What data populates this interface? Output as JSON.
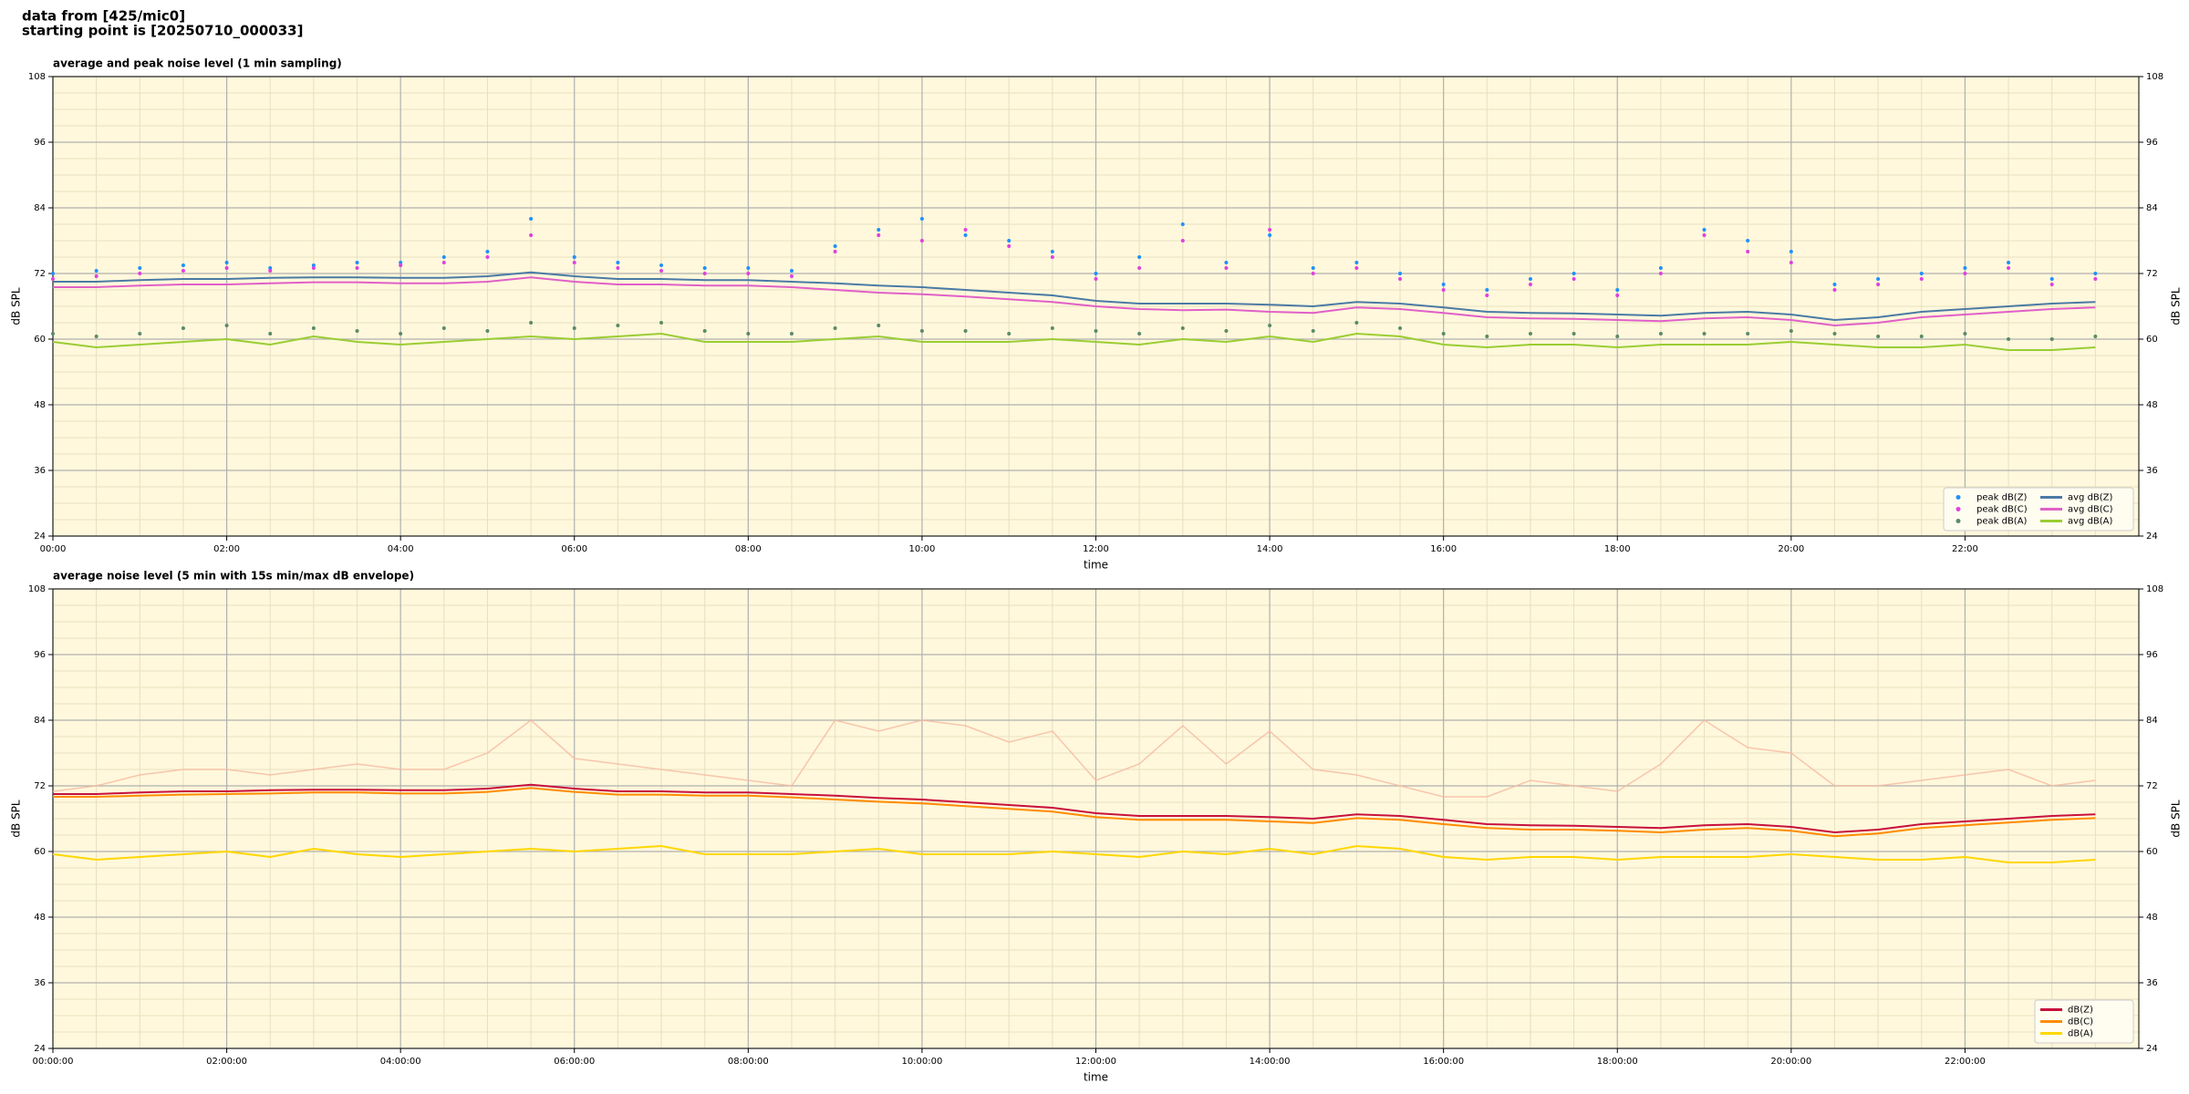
{
  "header": {
    "line1": "data from [425/mic0]",
    "line2": "starting point is [20250710_000033]"
  },
  "chart_data": [
    {
      "type": "line",
      "title": "average and peak noise level (1 min sampling)",
      "xlabel": "time",
      "ylabel": "dB SPL",
      "y2label": "dB SPL",
      "grid": true,
      "minor_grid": true,
      "legend": "lower right",
      "legend_columns": 2,
      "background": "#fff8dc",
      "xlim": [
        "00:00",
        "24:00"
      ],
      "xticks": [
        "00:00",
        "02:00",
        "04:00",
        "06:00",
        "08:00",
        "10:00",
        "12:00",
        "14:00",
        "16:00",
        "18:00",
        "20:00",
        "22:00"
      ],
      "ylim": [
        24,
        108
      ],
      "yticks": [
        24,
        36,
        48,
        60,
        72,
        84,
        96,
        108
      ],
      "y2lim": [
        24,
        108
      ],
      "y2ticks": [
        24,
        36,
        48,
        60,
        72,
        84,
        96,
        108
      ],
      "x": [
        "00:00",
        "00:30",
        "01:00",
        "01:30",
        "02:00",
        "02:30",
        "03:00",
        "03:30",
        "04:00",
        "04:30",
        "05:00",
        "05:30",
        "06:00",
        "06:30",
        "07:00",
        "07:30",
        "08:00",
        "08:30",
        "09:00",
        "09:30",
        "10:00",
        "10:30",
        "11:00",
        "11:30",
        "12:00",
        "12:30",
        "13:00",
        "13:30",
        "14:00",
        "14:30",
        "15:00",
        "15:30",
        "16:00",
        "16:30",
        "17:00",
        "17:30",
        "18:00",
        "18:30",
        "19:00",
        "19:30",
        "20:00",
        "20:30",
        "21:00",
        "21:30",
        "22:00",
        "22:30",
        "23:00",
        "23:30"
      ],
      "series": [
        {
          "name": "peak dB(Z)",
          "kind": "scatter",
          "color": "#1e90ff",
          "values": [
            72,
            72.5,
            73,
            73.5,
            74,
            73,
            73.5,
            74,
            74,
            75,
            76,
            82,
            75,
            74,
            73.5,
            73,
            73,
            72.5,
            77,
            80,
            82,
            79,
            78,
            76,
            72,
            75,
            81,
            74,
            79,
            73,
            74,
            72,
            70,
            69,
            71,
            72,
            69,
            73,
            80,
            78,
            76,
            70,
            71,
            72,
            73,
            74,
            71,
            72
          ]
        },
        {
          "name": "peak dB(C)",
          "kind": "scatter",
          "color": "#e040e0",
          "values": [
            71,
            71.5,
            72,
            72.5,
            73,
            72.5,
            73,
            73,
            73.5,
            74,
            75,
            79,
            74,
            73,
            72.5,
            72,
            72,
            71.5,
            76,
            79,
            78,
            80,
            77,
            75,
            71,
            73,
            78,
            73,
            80,
            72,
            73,
            71,
            69,
            68,
            70,
            71,
            68,
            72,
            79,
            76,
            74,
            69,
            70,
            71,
            72,
            73,
            70,
            71
          ]
        },
        {
          "name": "peak dB(A)",
          "kind": "scatter",
          "color": "#5a8a6a",
          "values": [
            61,
            60.5,
            61,
            62,
            62.5,
            61,
            62,
            61.5,
            61,
            62,
            61.5,
            63,
            62,
            62.5,
            63,
            61.5,
            61,
            61,
            62,
            62.5,
            61.5,
            61.5,
            61,
            62,
            61.5,
            61,
            62,
            61.5,
            62.5,
            61.5,
            63,
            62,
            61,
            60.5,
            61,
            61,
            60.5,
            61,
            61,
            61,
            61.5,
            61,
            60.5,
            60.5,
            61,
            60,
            60,
            60.5
          ]
        },
        {
          "name": "avg dB(Z)",
          "kind": "line",
          "color": "#4a7aa5",
          "values": [
            70.5,
            70.5,
            70.8,
            71.0,
            71.0,
            71.2,
            71.3,
            71.3,
            71.2,
            71.2,
            71.5,
            72.2,
            71.5,
            71.0,
            71.0,
            70.8,
            70.8,
            70.5,
            70.2,
            69.8,
            69.5,
            69.0,
            68.5,
            68.0,
            67.0,
            66.5,
            66.5,
            66.5,
            66.3,
            66.0,
            66.8,
            66.5,
            65.8,
            65.0,
            64.8,
            64.7,
            64.5,
            64.3,
            64.8,
            65.0,
            64.5,
            63.5,
            64.0,
            65.0,
            65.5,
            66.0,
            66.5,
            66.8
          ]
        },
        {
          "name": "avg dB(C)",
          "kind": "line",
          "color": "#e060c8",
          "values": [
            69.5,
            69.5,
            69.8,
            70.0,
            70.0,
            70.2,
            70.4,
            70.4,
            70.2,
            70.2,
            70.5,
            71.3,
            70.5,
            70.0,
            70.0,
            69.8,
            69.8,
            69.5,
            69.0,
            68.5,
            68.2,
            67.8,
            67.3,
            66.8,
            66.0,
            65.5,
            65.3,
            65.4,
            65.0,
            64.8,
            65.8,
            65.5,
            64.8,
            64.0,
            63.8,
            63.7,
            63.5,
            63.3,
            63.8,
            64.0,
            63.5,
            62.5,
            63.0,
            64.0,
            64.5,
            65.0,
            65.5,
            65.8
          ]
        },
        {
          "name": "avg dB(A)",
          "kind": "line",
          "color": "#9acd32",
          "values": [
            59.5,
            58.5,
            59.0,
            59.5,
            60.0,
            59.0,
            60.5,
            59.5,
            59.0,
            59.5,
            60.0,
            60.5,
            60.0,
            60.5,
            61.0,
            59.5,
            59.5,
            59.5,
            60.0,
            60.5,
            59.5,
            59.5,
            59.5,
            60.0,
            59.5,
            59.0,
            60.0,
            59.5,
            60.5,
            59.5,
            61.0,
            60.5,
            59.0,
            58.5,
            59.0,
            59.0,
            58.5,
            59.0,
            59.0,
            59.0,
            59.5,
            59.0,
            58.5,
            58.5,
            59.0,
            58.0,
            58.0,
            58.5
          ]
        }
      ]
    },
    {
      "type": "line",
      "title": "average noise level (5 min with 15s min/max dB envelope)",
      "xlabel": "time",
      "ylabel": "dB SPL",
      "y2label": "dB SPL",
      "grid": true,
      "minor_grid": true,
      "legend": "lower right",
      "legend_columns": 1,
      "background": "#fff8dc",
      "xlim": [
        "00:00:00",
        "24:00:00"
      ],
      "xticks": [
        "00:00:00",
        "02:00:00",
        "04:00:00",
        "06:00:00",
        "08:00:00",
        "10:00:00",
        "12:00:00",
        "14:00:00",
        "16:00:00",
        "18:00:00",
        "20:00:00",
        "22:00:00"
      ],
      "ylim": [
        24,
        108
      ],
      "yticks": [
        24,
        36,
        48,
        60,
        72,
        84,
        96,
        108
      ],
      "y2lim": [
        24,
        108
      ],
      "y2ticks": [
        24,
        36,
        48,
        60,
        72,
        84,
        96,
        108
      ],
      "x": [
        "00:00:00",
        "00:30:00",
        "01:00:00",
        "01:30:00",
        "02:00:00",
        "02:30:00",
        "03:00:00",
        "03:30:00",
        "04:00:00",
        "04:30:00",
        "05:00:00",
        "05:30:00",
        "06:00:00",
        "06:30:00",
        "07:00:00",
        "07:30:00",
        "08:00:00",
        "08:30:00",
        "09:00:00",
        "09:30:00",
        "10:00:00",
        "10:30:00",
        "11:00:00",
        "11:30:00",
        "12:00:00",
        "12:30:00",
        "13:00:00",
        "13:30:00",
        "14:00:00",
        "14:30:00",
        "15:00:00",
        "15:30:00",
        "16:00:00",
        "16:30:00",
        "17:00:00",
        "17:30:00",
        "18:00:00",
        "18:30:00",
        "19:00:00",
        "19:30:00",
        "20:00:00",
        "20:30:00",
        "21:00:00",
        "21:30:00",
        "22:00:00",
        "22:30:00",
        "23:00:00",
        "23:30:00"
      ],
      "envelope_max": {
        "color": "#f5b9a0",
        "values": [
          71,
          72,
          74,
          75,
          75,
          74,
          75,
          76,
          75,
          75,
          78,
          84,
          77,
          76,
          75,
          74,
          73,
          72,
          84,
          82,
          84,
          83,
          80,
          82,
          73,
          76,
          83,
          76,
          82,
          75,
          74,
          72,
          70,
          70,
          73,
          72,
          71,
          76,
          84,
          79,
          78,
          72,
          72,
          73,
          74,
          75,
          72,
          73
        ]
      },
      "series": [
        {
          "name": "dB(Z)",
          "kind": "line",
          "color": "#c8103c",
          "values": [
            70.5,
            70.5,
            70.8,
            71.0,
            71.0,
            71.2,
            71.3,
            71.3,
            71.2,
            71.2,
            71.5,
            72.2,
            71.5,
            71.0,
            71.0,
            70.8,
            70.8,
            70.5,
            70.2,
            69.8,
            69.5,
            69.0,
            68.5,
            68.0,
            67.0,
            66.5,
            66.5,
            66.5,
            66.3,
            66.0,
            66.8,
            66.5,
            65.8,
            65.0,
            64.8,
            64.7,
            64.5,
            64.3,
            64.8,
            65.0,
            64.5,
            63.5,
            64.0,
            65.0,
            65.5,
            66.0,
            66.5,
            66.8
          ]
        },
        {
          "name": "dB(C)",
          "kind": "line",
          "color": "#ff8c00",
          "values": [
            70.0,
            70.0,
            70.2,
            70.4,
            70.5,
            70.6,
            70.8,
            70.8,
            70.6,
            70.6,
            70.9,
            71.6,
            70.9,
            70.4,
            70.4,
            70.2,
            70.2,
            69.9,
            69.5,
            69.1,
            68.8,
            68.3,
            67.8,
            67.3,
            66.3,
            65.8,
            65.8,
            65.8,
            65.5,
            65.2,
            66.1,
            65.8,
            65.0,
            64.3,
            64.0,
            64.0,
            63.8,
            63.5,
            64.0,
            64.3,
            63.8,
            62.8,
            63.3,
            64.3,
            64.8,
            65.3,
            65.8,
            66.1
          ]
        },
        {
          "name": "dB(A)",
          "kind": "line",
          "color": "#ffd700",
          "values": [
            59.5,
            58.5,
            59.0,
            59.5,
            60.0,
            59.0,
            60.5,
            59.5,
            59.0,
            59.5,
            60.0,
            60.5,
            60.0,
            60.5,
            61.0,
            59.5,
            59.5,
            59.5,
            60.0,
            60.5,
            59.5,
            59.5,
            59.5,
            60.0,
            59.5,
            59.0,
            60.0,
            59.5,
            60.5,
            59.5,
            61.0,
            60.5,
            59.0,
            58.5,
            59.0,
            59.0,
            58.5,
            59.0,
            59.0,
            59.0,
            59.5,
            59.0,
            58.5,
            58.5,
            59.0,
            58.0,
            58.0,
            58.5
          ]
        }
      ]
    }
  ]
}
